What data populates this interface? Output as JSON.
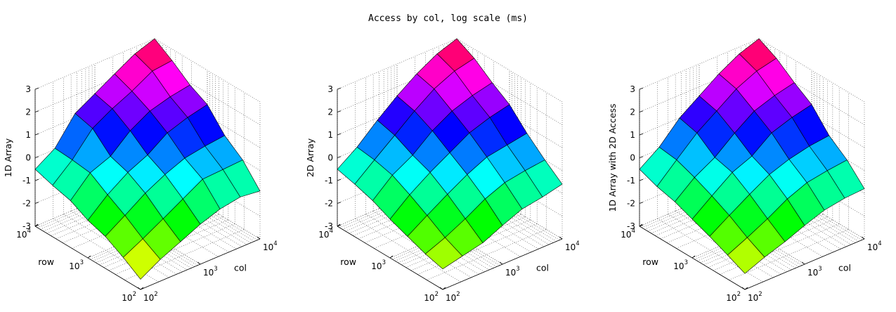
{
  "title": "Access by col, log scale (ms)",
  "chart_data": [
    {
      "type": "surface",
      "zlabel": "1D Array",
      "xlabel": "col",
      "ylabel": "row",
      "x_ticks": [
        "10",
        "10",
        "10"
      ],
      "x_tick_exponents": [
        "2",
        "3",
        "4"
      ],
      "y_ticks": [
        "10",
        "10",
        "10"
      ],
      "y_tick_exponents": [
        "2",
        "3",
        "4"
      ],
      "z_ticks": [
        "-3",
        "-2",
        "-1",
        "0",
        "1",
        "2",
        "3"
      ],
      "zlim": [
        -3,
        3
      ],
      "x_log10": [
        2.0,
        2.33,
        2.67,
        3.0,
        3.33,
        3.67,
        4.0
      ],
      "y_log10": [
        2.0,
        2.33,
        2.67,
        3.0,
        3.33,
        3.67,
        4.0
      ],
      "z_grid": [
        [
          -2.55,
          -2.05,
          -1.65,
          -1.25,
          -0.95,
          -0.8,
          -0.9
        ],
        [
          -2.05,
          -1.6,
          -1.1,
          -0.6,
          -0.1,
          -0.05,
          0.0
        ],
        [
          -1.6,
          -1.05,
          -0.45,
          0.0,
          0.35,
          0.5,
          0.6
        ],
        [
          -1.35,
          -0.6,
          0.0,
          0.4,
          1.0,
          1.3,
          1.5
        ],
        [
          -0.95,
          -0.1,
          0.25,
          1.0,
          1.5,
          1.75,
          1.9
        ],
        [
          -0.75,
          0.0,
          1.0,
          1.5,
          1.9,
          2.4,
          2.5
        ],
        [
          -0.5,
          0.05,
          1.2,
          1.7,
          2.2,
          2.7,
          3.0
        ]
      ]
    },
    {
      "type": "surface",
      "zlabel": "2D Array",
      "xlabel": "col",
      "ylabel": "row",
      "x_ticks": [
        "10",
        "10",
        "10"
      ],
      "x_tick_exponents": [
        "2",
        "3",
        "4"
      ],
      "y_ticks": [
        "10",
        "10",
        "10"
      ],
      "y_tick_exponents": [
        "2",
        "3",
        "4"
      ],
      "z_ticks": [
        "-3",
        "-2",
        "-1",
        "0",
        "1",
        "2",
        "3"
      ],
      "zlim": [
        -3,
        3
      ],
      "x_log10": [
        2.0,
        2.33,
        2.67,
        3.0,
        3.33,
        3.67,
        4.0
      ],
      "y_log10": [
        2.0,
        2.33,
        2.67,
        3.0,
        3.33,
        3.67,
        4.0
      ],
      "z_grid": [
        [
          -2.1,
          -1.9,
          -1.7,
          -1.3,
          -0.95,
          -0.8,
          -0.6
        ],
        [
          -1.9,
          -1.55,
          -1.1,
          -0.6,
          -0.25,
          -0.1,
          0.0
        ],
        [
          -1.6,
          -1.05,
          -0.5,
          0.0,
          0.4,
          0.55,
          0.7
        ],
        [
          -1.3,
          -0.6,
          0.0,
          0.5,
          1.0,
          1.3,
          1.5
        ],
        [
          -0.95,
          -0.2,
          0.3,
          1.0,
          1.5,
          1.8,
          2.0
        ],
        [
          -0.7,
          0.0,
          0.7,
          1.4,
          2.0,
          2.4,
          2.6
        ],
        [
          -0.5,
          0.1,
          0.9,
          1.6,
          2.2,
          2.7,
          3.0
        ]
      ]
    },
    {
      "type": "surface",
      "zlabel": "1D Array with 2D Access",
      "xlabel": "col",
      "ylabel": "row",
      "x_ticks": [
        "10",
        "10",
        "10"
      ],
      "x_tick_exponents": [
        "2",
        "3",
        "4"
      ],
      "y_ticks": [
        "10",
        "10",
        "10"
      ],
      "y_tick_exponents": [
        "2",
        "3",
        "4"
      ],
      "z_ticks": [
        "-3",
        "-2",
        "-1",
        "0",
        "1",
        "2",
        "3"
      ],
      "zlim": [
        -3,
        3
      ],
      "x_log10": [
        2.0,
        2.33,
        2.67,
        3.0,
        3.33,
        3.67,
        4.0
      ],
      "y_log10": [
        2.0,
        2.33,
        2.67,
        3.0,
        3.33,
        3.67,
        4.0
      ],
      "z_grid": [
        [
          -2.3,
          -1.95,
          -1.65,
          -1.3,
          -1.0,
          -0.85,
          -0.8
        ],
        [
          -1.95,
          -1.55,
          -1.1,
          -0.6,
          -0.25,
          -0.1,
          0.0
        ],
        [
          -1.6,
          -1.05,
          -0.5,
          0.0,
          0.3,
          0.5,
          0.6
        ],
        [
          -1.3,
          -0.65,
          0.0,
          0.35,
          1.0,
          1.3,
          1.5
        ],
        [
          -1.0,
          -0.3,
          0.2,
          0.9,
          1.5,
          1.8,
          2.0
        ],
        [
          -0.8,
          0.0,
          0.8,
          1.4,
          2.0,
          2.4,
          2.6
        ],
        [
          -0.5,
          0.1,
          1.0,
          1.6,
          2.2,
          2.7,
          3.0
        ]
      ]
    }
  ]
}
